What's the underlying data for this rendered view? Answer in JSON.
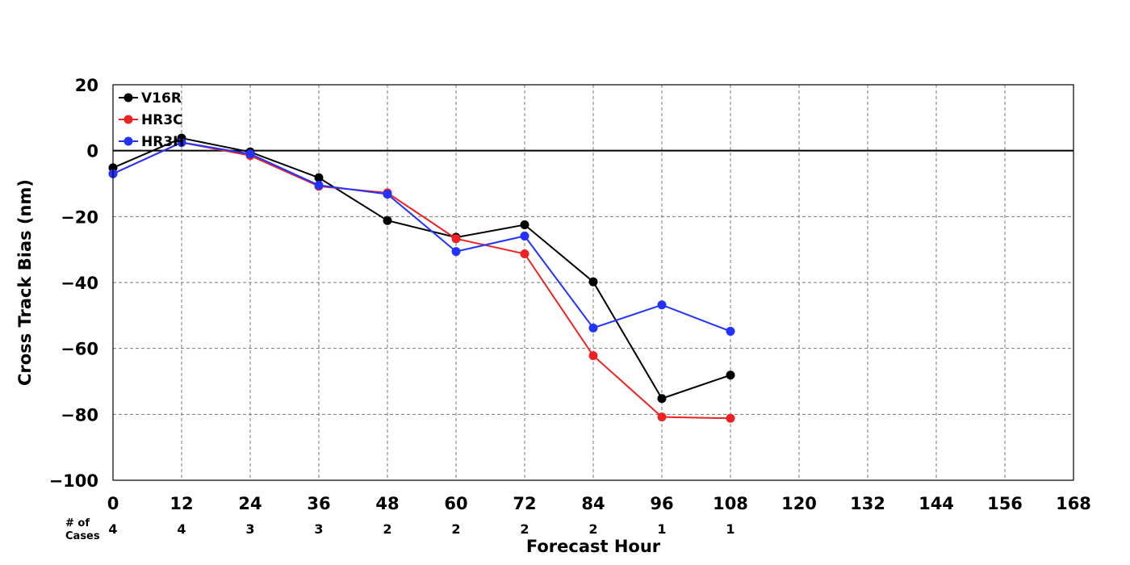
{
  "chart_data": {
    "type": "line",
    "title": "",
    "xlabel": "Forecast Hour",
    "ylabel": "Cross Track Bias (nm)",
    "xlim": [
      0,
      168
    ],
    "ylim": [
      -100,
      20
    ],
    "xticks": [
      0,
      12,
      24,
      36,
      48,
      60,
      72,
      84,
      96,
      108,
      120,
      132,
      144,
      156,
      168
    ],
    "yticks": [
      20,
      0,
      -20,
      -40,
      -60,
      -80,
      -100
    ],
    "ytick_labels": [
      "20",
      "0",
      "−20",
      "−40",
      "−60",
      "−80",
      "−100"
    ],
    "grid": true,
    "legend_position": "top-left",
    "x": [
      0,
      12,
      24,
      36,
      48,
      60,
      72,
      84,
      96,
      108
    ],
    "series": [
      {
        "name": "V16R",
        "color": "#000000",
        "values": [
          -5.2,
          3.8,
          -0.4,
          -8.2,
          -21.2,
          -26.3,
          -22.5,
          -39.8,
          -75.2,
          -68.1
        ]
      },
      {
        "name": "HR3C",
        "color": "#ee2222",
        "values": [
          -7.0,
          2.5,
          -1.5,
          -10.8,
          -12.8,
          -26.7,
          -31.3,
          -62.2,
          -80.8,
          -81.2
        ]
      },
      {
        "name": "HR3H",
        "color": "#2233ff",
        "values": [
          -7.0,
          2.5,
          -1.0,
          -10.5,
          -13.2,
          -30.6,
          -25.9,
          -53.8,
          -46.8,
          -54.8
        ]
      }
    ],
    "cases_label": [
      "# of",
      "Cases"
    ],
    "cases": [
      4,
      4,
      3,
      3,
      2,
      2,
      2,
      2,
      1,
      1
    ]
  }
}
